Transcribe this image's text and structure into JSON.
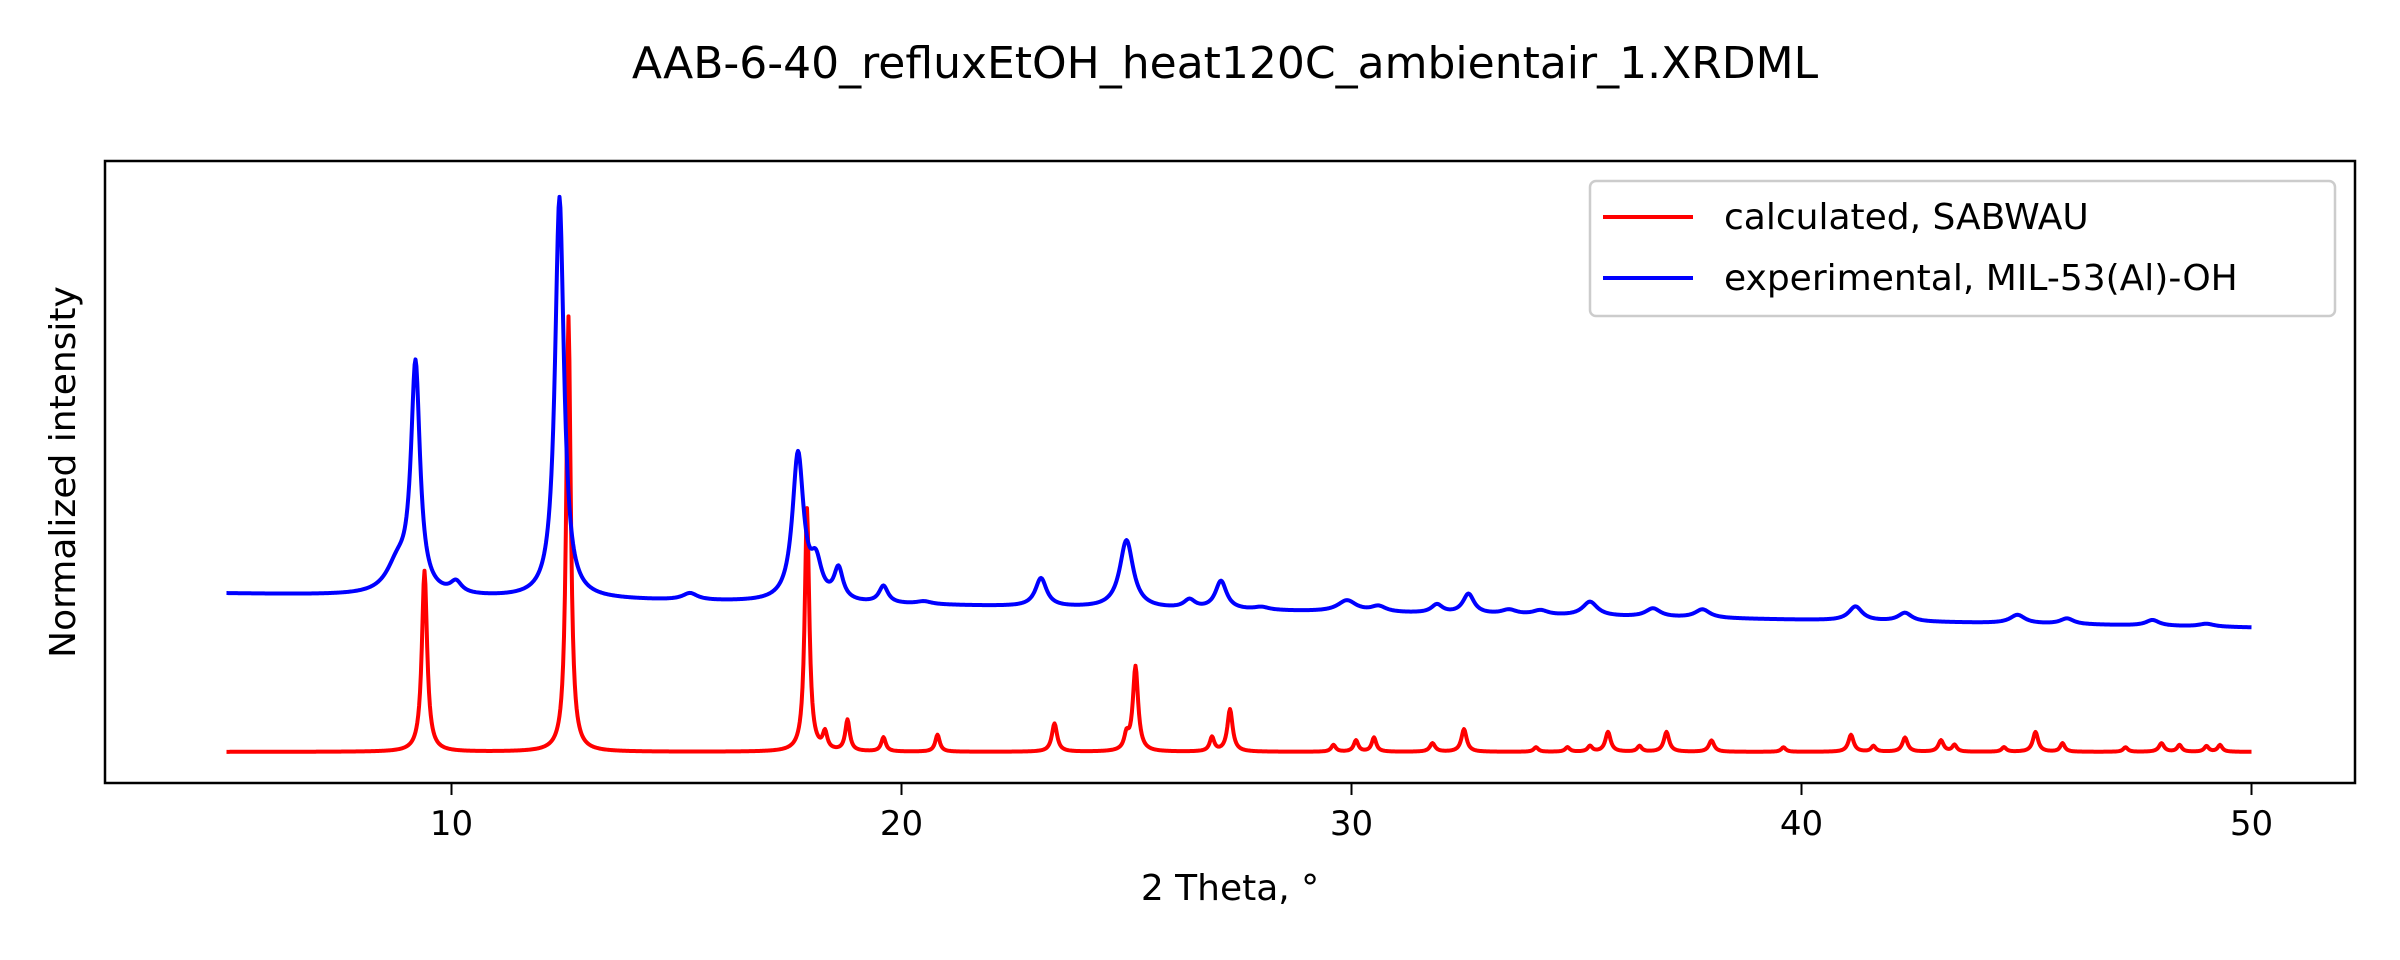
{
  "chart_data": {
    "type": "line",
    "title": "AAB-6-40_refluxEtOH_heat120C_ambientair_1.XRDML",
    "xlabel": "2 Theta, °",
    "ylabel": "Normalized intensity",
    "xlim": [
      2.3,
      52.3
    ],
    "ylim": [
      -0.05,
      1.05
    ],
    "xticks": [
      10,
      20,
      30,
      40,
      50
    ],
    "y_ticks_labeled": false,
    "grid": false,
    "legend_position": "top-right",
    "series": [
      {
        "name": "calculated, SABWAU",
        "color": "#ff0000",
        "baseline": 0.005,
        "peaks": [
          [
            9.4,
            0.32,
            0.07
          ],
          [
            12.6,
            0.77,
            0.06
          ],
          [
            17.9,
            0.43,
            0.06
          ],
          [
            18.3,
            0.03,
            0.06
          ],
          [
            18.8,
            0.055,
            0.06
          ],
          [
            19.6,
            0.025,
            0.06
          ],
          [
            20.8,
            0.03,
            0.06
          ],
          [
            23.4,
            0.05,
            0.07
          ],
          [
            25.2,
            0.15,
            0.07
          ],
          [
            25.0,
            0.025,
            0.06
          ],
          [
            26.9,
            0.025,
            0.06
          ],
          [
            27.3,
            0.075,
            0.07
          ],
          [
            29.6,
            0.012,
            0.06
          ],
          [
            30.1,
            0.02,
            0.06
          ],
          [
            30.5,
            0.025,
            0.06
          ],
          [
            31.8,
            0.015,
            0.07
          ],
          [
            32.5,
            0.04,
            0.07
          ],
          [
            34.1,
            0.008,
            0.06
          ],
          [
            34.8,
            0.008,
            0.06
          ],
          [
            35.3,
            0.01,
            0.06
          ],
          [
            35.7,
            0.035,
            0.07
          ],
          [
            36.4,
            0.01,
            0.06
          ],
          [
            37.0,
            0.035,
            0.07
          ],
          [
            38.0,
            0.02,
            0.07
          ],
          [
            39.6,
            0.008,
            0.06
          ],
          [
            41.1,
            0.03,
            0.07
          ],
          [
            41.6,
            0.01,
            0.06
          ],
          [
            42.3,
            0.025,
            0.07
          ],
          [
            43.1,
            0.02,
            0.07
          ],
          [
            43.4,
            0.012,
            0.06
          ],
          [
            44.5,
            0.008,
            0.06
          ],
          [
            45.2,
            0.035,
            0.07
          ],
          [
            45.8,
            0.015,
            0.06
          ],
          [
            47.2,
            0.008,
            0.06
          ],
          [
            48.0,
            0.015,
            0.07
          ],
          [
            48.4,
            0.012,
            0.06
          ],
          [
            49.0,
            0.01,
            0.06
          ],
          [
            49.3,
            0.012,
            0.06
          ]
        ]
      },
      {
        "name": "experimental, MIL-53(Al)-OH",
        "color": "#0000ff",
        "baseline_start": 0.285,
        "baseline_end": 0.225,
        "peaks": [
          [
            9.2,
            0.4,
            0.12
          ],
          [
            8.8,
            0.05,
            0.3
          ],
          [
            10.1,
            0.02,
            0.15
          ],
          [
            12.4,
            0.71,
            0.12
          ],
          [
            15.3,
            0.012,
            0.2
          ],
          [
            17.7,
            0.26,
            0.15
          ],
          [
            18.1,
            0.06,
            0.15
          ],
          [
            18.6,
            0.055,
            0.12
          ],
          [
            19.6,
            0.03,
            0.12
          ],
          [
            20.5,
            0.005,
            0.2
          ],
          [
            23.1,
            0.05,
            0.15
          ],
          [
            25.0,
            0.12,
            0.18
          ],
          [
            26.4,
            0.015,
            0.15
          ],
          [
            27.1,
            0.05,
            0.15
          ],
          [
            28.0,
            0.005,
            0.2
          ],
          [
            29.9,
            0.02,
            0.25
          ],
          [
            30.6,
            0.01,
            0.2
          ],
          [
            31.9,
            0.015,
            0.15
          ],
          [
            32.6,
            0.035,
            0.15
          ],
          [
            33.5,
            0.008,
            0.2
          ],
          [
            34.2,
            0.008,
            0.2
          ],
          [
            35.3,
            0.025,
            0.2
          ],
          [
            36.7,
            0.015,
            0.2
          ],
          [
            37.8,
            0.015,
            0.2
          ],
          [
            41.2,
            0.025,
            0.18
          ],
          [
            42.3,
            0.015,
            0.18
          ],
          [
            44.8,
            0.015,
            0.2
          ],
          [
            45.9,
            0.01,
            0.18
          ],
          [
            47.8,
            0.01,
            0.18
          ],
          [
            49.0,
            0.005,
            0.2
          ]
        ]
      }
    ],
    "x_start": 5,
    "x_end": 50
  }
}
